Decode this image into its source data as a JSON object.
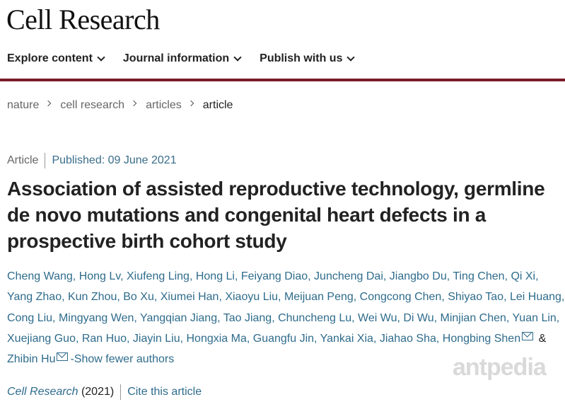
{
  "site": {
    "logo": "Cell Research"
  },
  "nav": [
    {
      "label": "Explore content"
    },
    {
      "label": "Journal information"
    },
    {
      "label": "Publish with us"
    }
  ],
  "breadcrumb": [
    "nature",
    "cell research",
    "articles",
    "article"
  ],
  "meta": {
    "type": "Article",
    "published": "Published: 09 June 2021"
  },
  "title": "Association of assisted reproductive technology, germline de novo mutations and congenital heart defects in a prospective birth cohort study",
  "authors": {
    "list": "Cheng Wang, Hong Lv, Xiufeng Ling, Hong Li, Feiyang Diao, Juncheng Dai, Jiangbo Du, Ting Chen, Qi Xi, Yang Zhao, Kun Zhou, Bo Xu, Xiumei Han, Xiaoyu Liu, Meijuan Peng, Congcong Chen, Shiyao Tao, Lei Huang, Cong Liu, Mingyang Wen, Yangqian Jiang, Tao Jiang, Chuncheng Lu, Wei Wu, Di Wu, Minjian Chen, Yuan Lin, Xuejiang Guo, Ran Huo, Jiayin Liu, Hongxia Ma, Guangfu Jin, Yankai Xia, Jiahao Sha, Hongbing",
    "author_a": "Shen",
    "amp": "&",
    "author_b": "Zhibin Hu",
    "toggle": "-Show fewer authors"
  },
  "footer": {
    "journal": "Cell Research",
    "year": "(2021)",
    "cite": "Cite this article"
  },
  "watermark": "antpedia",
  "colors": {
    "accent_rule": "#7b1b2a",
    "link": "#2f6c8c"
  }
}
